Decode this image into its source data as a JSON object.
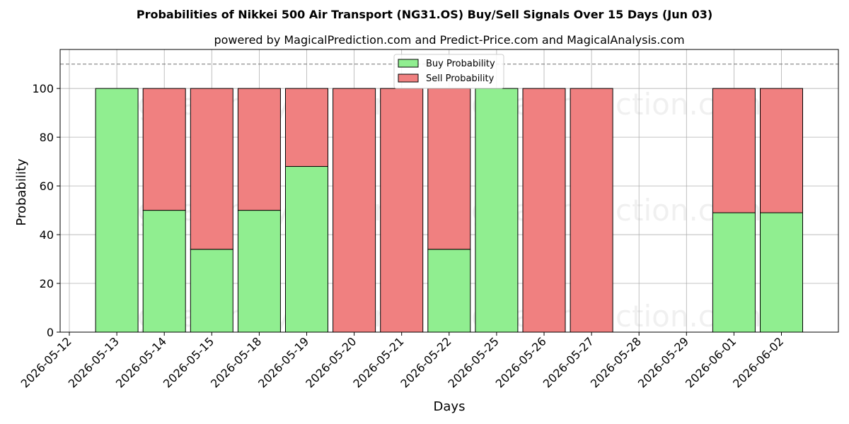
{
  "chart_data": {
    "type": "bar",
    "stacked": true,
    "title": "Probabilities of Nikkei 500 Air Transport (NG31.OS) Buy/Sell Signals Over 15 Days (Jun 03)",
    "subtitle": "powered by MagicalPrediction.com and Predict-Price.com and MagicalAnalysis.com",
    "xlabel": "Days",
    "ylabel": "Probability",
    "ylim": [
      0,
      116
    ],
    "yticks": [
      0,
      20,
      40,
      60,
      80,
      100
    ],
    "reference_line": 110,
    "grid": true,
    "legend_position": "top-center",
    "categories": [
      "2026-05-12",
      "2026-05-13",
      "2026-05-14",
      "2026-05-15",
      "2026-05-18",
      "2026-05-19",
      "2026-05-20",
      "2026-05-21",
      "2026-05-22",
      "2026-05-25",
      "2026-05-26",
      "2026-05-27",
      "2026-05-28",
      "2026-05-29",
      "2026-06-01",
      "2026-06-02"
    ],
    "series": [
      {
        "name": "Buy Probability",
        "color": "#90ee90",
        "values": [
          null,
          100,
          50,
          34,
          50,
          68,
          0,
          0,
          34,
          100,
          0,
          0,
          null,
          null,
          49,
          49
        ]
      },
      {
        "name": "Sell Probability",
        "color": "#f08080",
        "values": [
          null,
          0,
          50,
          66,
          50,
          32,
          100,
          100,
          66,
          0,
          100,
          100,
          null,
          null,
          51,
          51
        ]
      }
    ]
  },
  "watermarks": [
    "MagicalAnalysis.com",
    "MagicalPrediction.com",
    "MagicalAnalysis.com",
    "MagicalPrediction.com",
    "MagicalAnalysis.com",
    "MagicalPrediction.com"
  ]
}
